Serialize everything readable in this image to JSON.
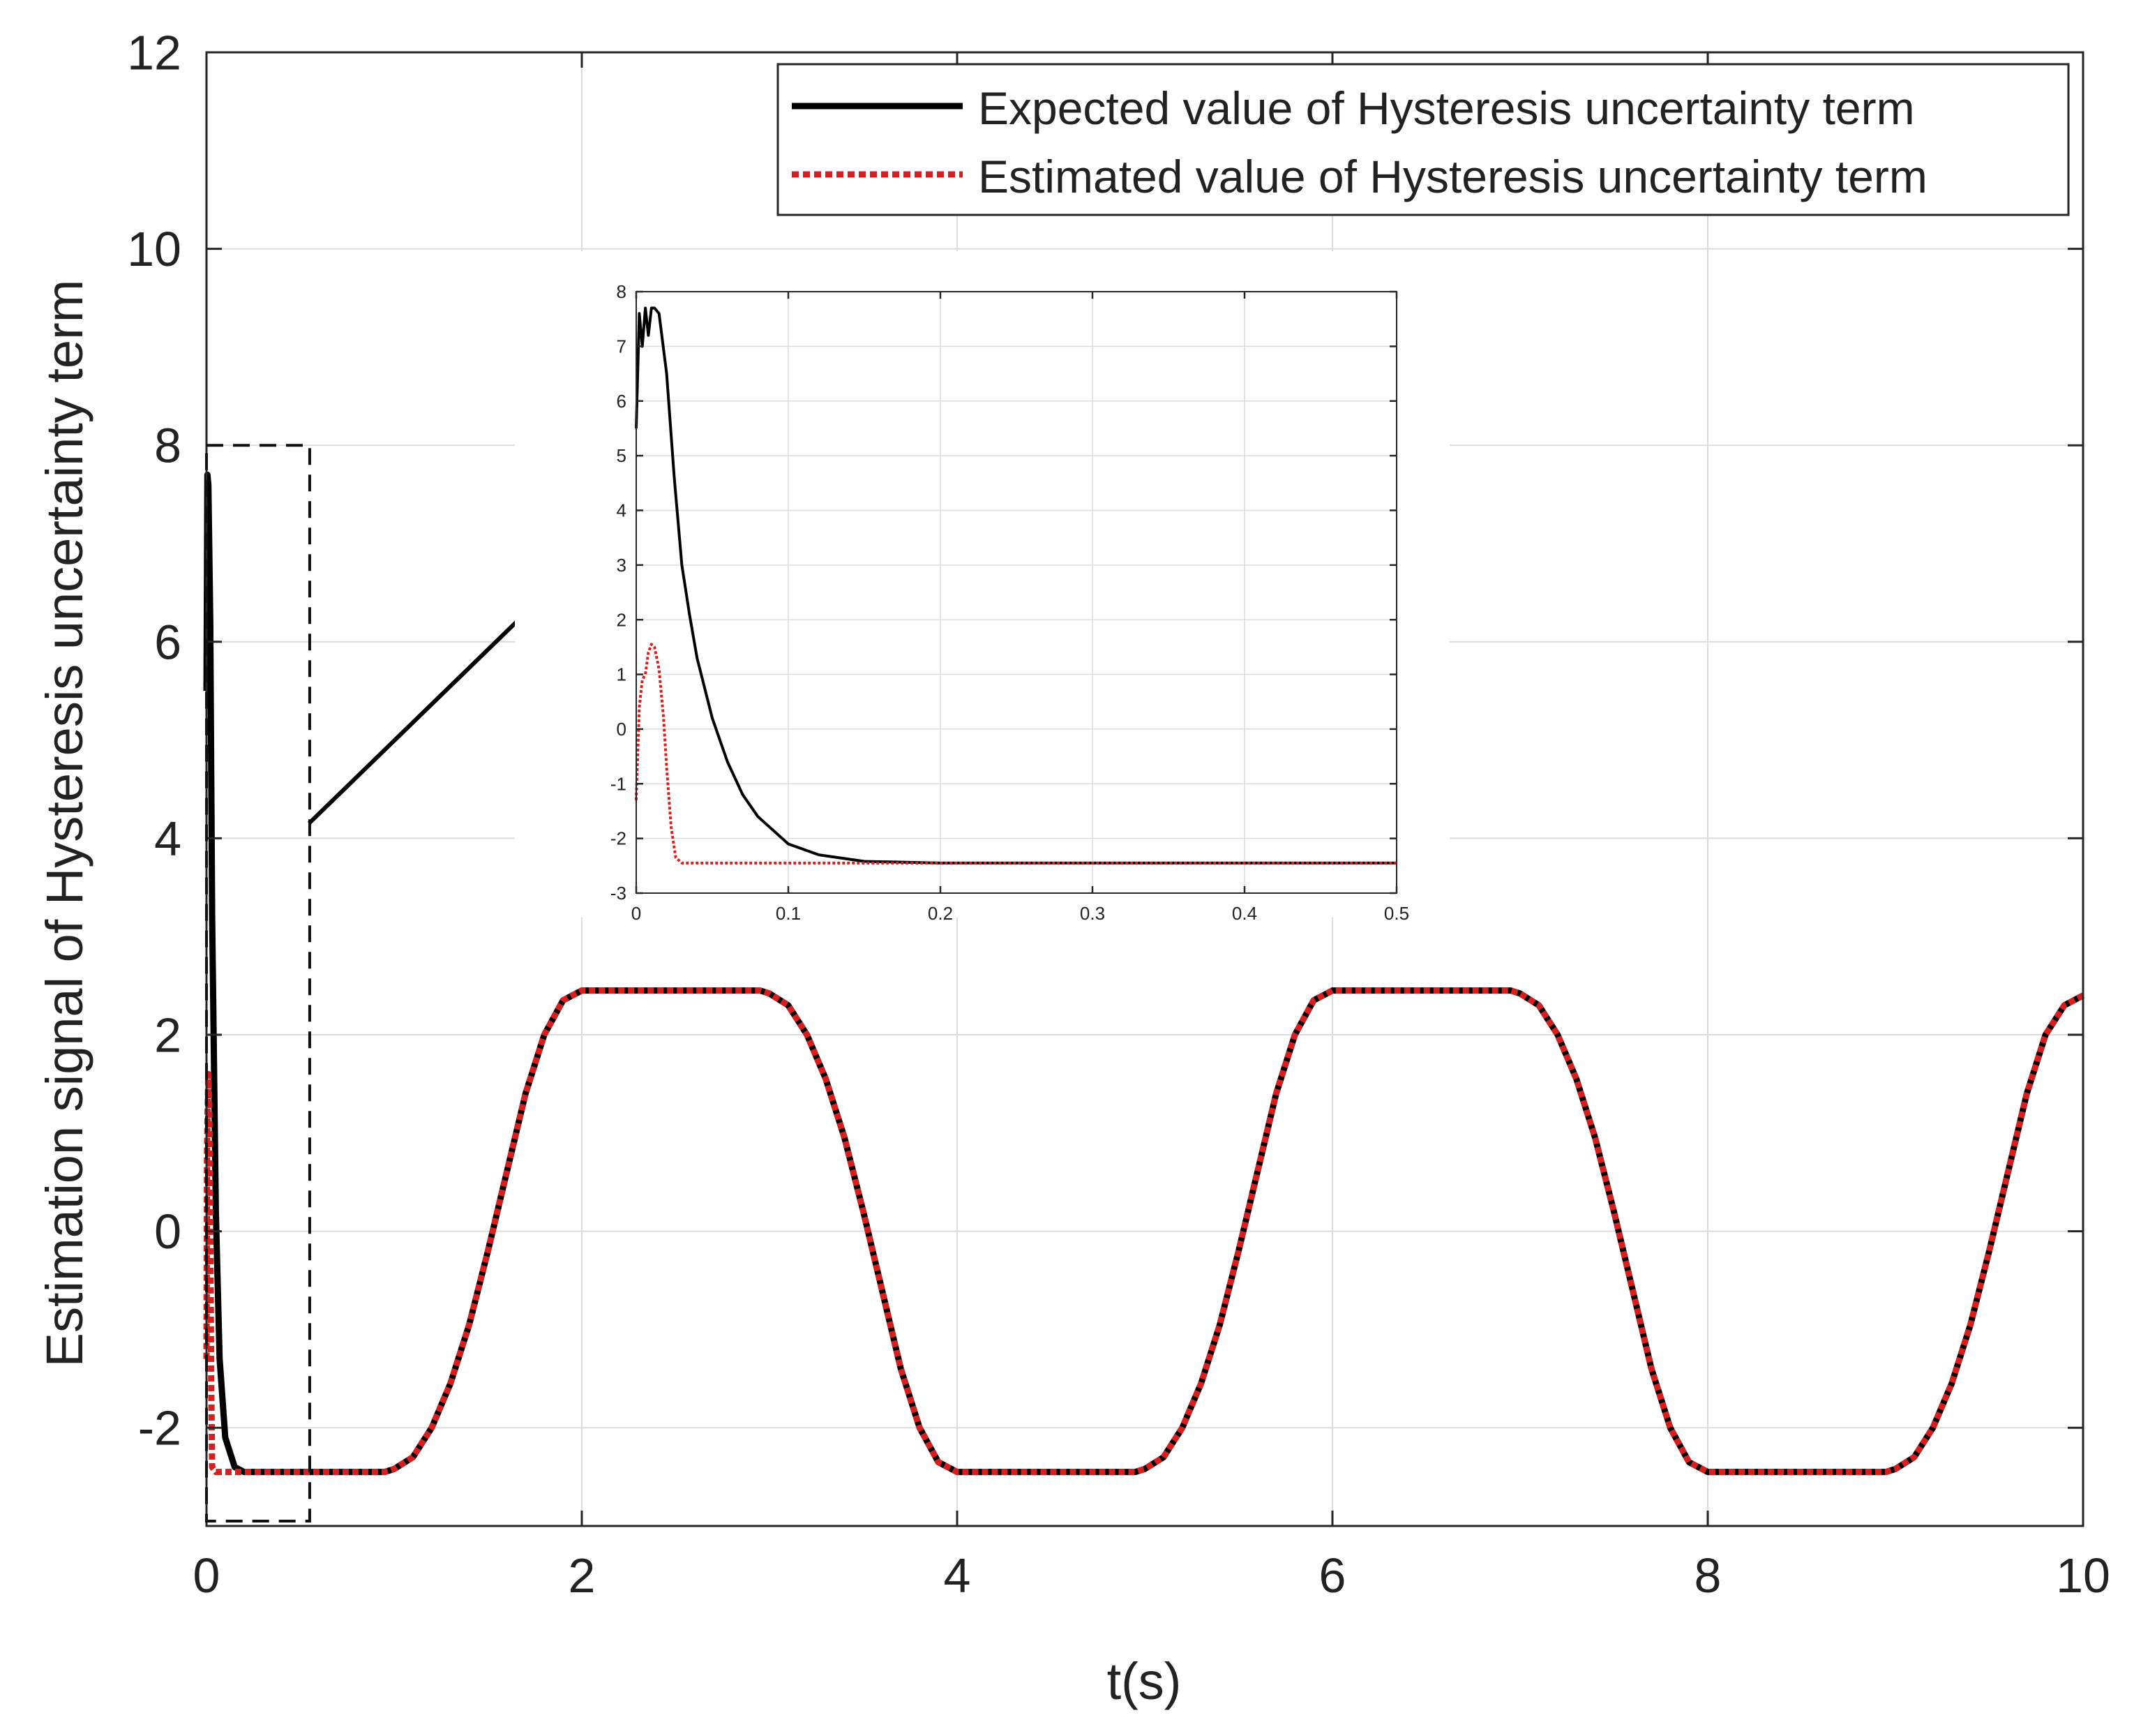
{
  "chart_data": [
    {
      "type": "line",
      "role": "main",
      "xlabel": "t(s)",
      "ylabel": "Estimation signal of Hysteresis uncertainty term",
      "xlim": [
        0,
        10
      ],
      "ylim": [
        -3,
        12
      ],
      "xticks": [
        0,
        2,
        4,
        6,
        8,
        10
      ],
      "yticks": [
        -2,
        0,
        2,
        4,
        6,
        8,
        10,
        12
      ],
      "xtick_labels": [
        "0",
        "2",
        "4",
        "6",
        "8",
        "10"
      ],
      "ytick_labels": [
        "-2",
        "0",
        "2",
        "4",
        "6",
        "8",
        "10",
        "12"
      ],
      "grid": true,
      "legend_position": "top-right",
      "zoom_region": {
        "x": [
          0,
          0.55
        ],
        "y": [
          -2.95,
          8
        ]
      },
      "series": [
        {
          "name": "Expected value of Hysteresis uncertainty term",
          "color": "#000000",
          "style": "solid",
          "x": [
            0,
            0.005,
            0.01,
            0.02,
            0.03,
            0.05,
            0.07,
            0.1,
            0.15,
            0.2,
            0.3,
            0.5,
            0.8,
            0.95,
            1.0,
            1.1,
            1.2,
            1.3,
            1.4,
            1.5,
            1.6,
            1.7,
            1.8,
            1.9,
            2.0,
            2.1,
            2.2,
            2.5,
            2.8,
            2.95,
            3.0,
            3.1,
            3.2,
            3.3,
            3.4,
            3.5,
            3.6,
            3.7,
            3.8,
            3.9,
            4.0,
            4.1,
            4.2,
            4.5,
            4.8,
            4.95,
            5.0,
            5.1,
            5.2,
            5.3,
            5.4,
            5.5,
            5.6,
            5.7,
            5.8,
            5.9,
            6.0,
            6.1,
            6.2,
            6.5,
            6.8,
            6.95,
            7.0,
            7.1,
            7.2,
            7.3,
            7.4,
            7.5,
            7.6,
            7.7,
            7.8,
            7.9,
            8.0,
            8.1,
            8.2,
            8.5,
            8.8,
            8.95,
            9.0,
            9.1,
            9.2,
            9.3,
            9.4,
            9.5,
            9.6,
            9.7,
            9.8,
            9.9,
            10.0
          ],
          "y": [
            5.5,
            7.7,
            7.6,
            6.2,
            3.2,
            0.2,
            -1.3,
            -2.1,
            -2.4,
            -2.45,
            -2.45,
            -2.45,
            -2.45,
            -2.45,
            -2.42,
            -2.3,
            -2.0,
            -1.55,
            -0.95,
            -0.2,
            0.6,
            1.4,
            2.0,
            2.35,
            2.45,
            2.45,
            2.45,
            2.45,
            2.45,
            2.45,
            2.42,
            2.3,
            2.0,
            1.55,
            0.95,
            0.2,
            -0.6,
            -1.4,
            -2.0,
            -2.35,
            -2.45,
            -2.45,
            -2.45,
            -2.45,
            -2.45,
            -2.45,
            -2.42,
            -2.3,
            -2.0,
            -1.55,
            -0.95,
            -0.2,
            0.6,
            1.4,
            2.0,
            2.35,
            2.45,
            2.45,
            2.45,
            2.45,
            2.45,
            2.45,
            2.42,
            2.3,
            2.0,
            1.55,
            0.95,
            0.2,
            -0.6,
            -1.4,
            -2.0,
            -2.35,
            -2.45,
            -2.45,
            -2.45,
            -2.45,
            -2.45,
            -2.45,
            -2.42,
            -2.3,
            -2.0,
            -1.55,
            -0.95,
            -0.2,
            0.6,
            1.4,
            2.0,
            2.3,
            2.4
          ]
        },
        {
          "name": "Estimated value of Hysteresis uncertainty term",
          "color": "#d42020",
          "style": "dotted",
          "x": [
            0,
            0.003,
            0.006,
            0.01,
            0.015,
            0.02,
            0.025,
            0.03,
            0.05,
            0.2,
            0.5,
            0.8,
            0.95,
            1.0,
            1.1,
            1.2,
            1.3,
            1.4,
            1.5,
            1.6,
            1.7,
            1.8,
            1.9,
            2.0,
            2.1,
            2.2,
            2.5,
            2.8,
            2.95,
            3.0,
            3.1,
            3.2,
            3.3,
            3.4,
            3.5,
            3.6,
            3.7,
            3.8,
            3.9,
            4.0,
            4.1,
            4.2,
            4.5,
            4.8,
            4.95,
            5.0,
            5.1,
            5.2,
            5.3,
            5.4,
            5.5,
            5.6,
            5.7,
            5.8,
            5.9,
            6.0,
            6.1,
            6.2,
            6.5,
            6.8,
            6.95,
            7.0,
            7.1,
            7.2,
            7.3,
            7.4,
            7.5,
            7.6,
            7.7,
            7.8,
            7.9,
            8.0,
            8.1,
            8.2,
            8.5,
            8.8,
            8.95,
            9.0,
            9.1,
            9.2,
            9.3,
            9.4,
            9.5,
            9.6,
            9.7,
            9.8,
            9.9,
            10.0
          ],
          "y": [
            -1.3,
            0.8,
            1.2,
            1.6,
            1.3,
            0.2,
            -1.5,
            -2.4,
            -2.45,
            -2.45,
            -2.45,
            -2.45,
            -2.45,
            -2.42,
            -2.3,
            -2.0,
            -1.55,
            -0.95,
            -0.2,
            0.6,
            1.4,
            2.0,
            2.35,
            2.45,
            2.45,
            2.45,
            2.45,
            2.45,
            2.45,
            2.42,
            2.3,
            2.0,
            1.55,
            0.95,
            0.2,
            -0.6,
            -1.4,
            -2.0,
            -2.35,
            -2.45,
            -2.45,
            -2.45,
            -2.45,
            -2.45,
            -2.45,
            -2.42,
            -2.3,
            -2.0,
            -1.55,
            -0.95,
            -0.2,
            0.6,
            1.4,
            2.0,
            2.35,
            2.45,
            2.45,
            2.45,
            2.45,
            2.45,
            2.45,
            2.42,
            2.3,
            2.0,
            1.55,
            0.95,
            0.2,
            -0.6,
            -1.4,
            -2.0,
            -2.35,
            -2.45,
            -2.45,
            -2.45,
            -2.45,
            -2.45,
            -2.45,
            -2.42,
            -2.3,
            -2.0,
            -1.55,
            -0.95,
            -0.2,
            0.6,
            1.4,
            2.0,
            2.3,
            2.4
          ]
        }
      ]
    },
    {
      "type": "line",
      "role": "inset",
      "xlabel": "",
      "ylabel": "",
      "xlim": [
        0,
        0.5
      ],
      "ylim": [
        -3,
        8
      ],
      "xticks": [
        0,
        0.1,
        0.2,
        0.3,
        0.4,
        0.5
      ],
      "yticks": [
        -3,
        -2,
        -1,
        0,
        1,
        2,
        3,
        4,
        5,
        6,
        7,
        8
      ],
      "xtick_labels": [
        "0",
        "0.1",
        "0.2",
        "0.3",
        "0.4",
        "0.5"
      ],
      "ytick_labels": [
        "-3",
        "-2",
        "-1",
        "0",
        "1",
        "2",
        "3",
        "4",
        "5",
        "6",
        "7",
        "8"
      ],
      "grid": true,
      "series": [
        {
          "name": "Expected value of Hysteresis uncertainty term",
          "color": "#000000",
          "style": "solid",
          "x": [
            0,
            0.002,
            0.004,
            0.006,
            0.008,
            0.01,
            0.012,
            0.015,
            0.02,
            0.025,
            0.03,
            0.035,
            0.04,
            0.05,
            0.06,
            0.07,
            0.08,
            0.1,
            0.12,
            0.15,
            0.2,
            0.3,
            0.4,
            0.5
          ],
          "y": [
            5.5,
            7.6,
            7.0,
            7.7,
            7.2,
            7.7,
            7.7,
            7.6,
            6.5,
            4.6,
            3.0,
            2.1,
            1.3,
            0.2,
            -0.6,
            -1.2,
            -1.6,
            -2.1,
            -2.3,
            -2.42,
            -2.45,
            -2.45,
            -2.45,
            -2.45
          ]
        },
        {
          "name": "Estimated value of Hysteresis uncertainty term",
          "color": "#d42020",
          "style": "dotted",
          "x": [
            0,
            0.002,
            0.004,
            0.006,
            0.008,
            0.01,
            0.012,
            0.015,
            0.018,
            0.02,
            0.023,
            0.026,
            0.03,
            0.05,
            0.1,
            0.2,
            0.3,
            0.4,
            0.5
          ],
          "y": [
            -1.3,
            0.4,
            0.9,
            1.0,
            1.4,
            1.55,
            1.5,
            1.1,
            0.2,
            -0.7,
            -1.8,
            -2.35,
            -2.45,
            -2.45,
            -2.45,
            -2.45,
            -2.45,
            -2.45,
            -2.45
          ]
        }
      ]
    }
  ]
}
